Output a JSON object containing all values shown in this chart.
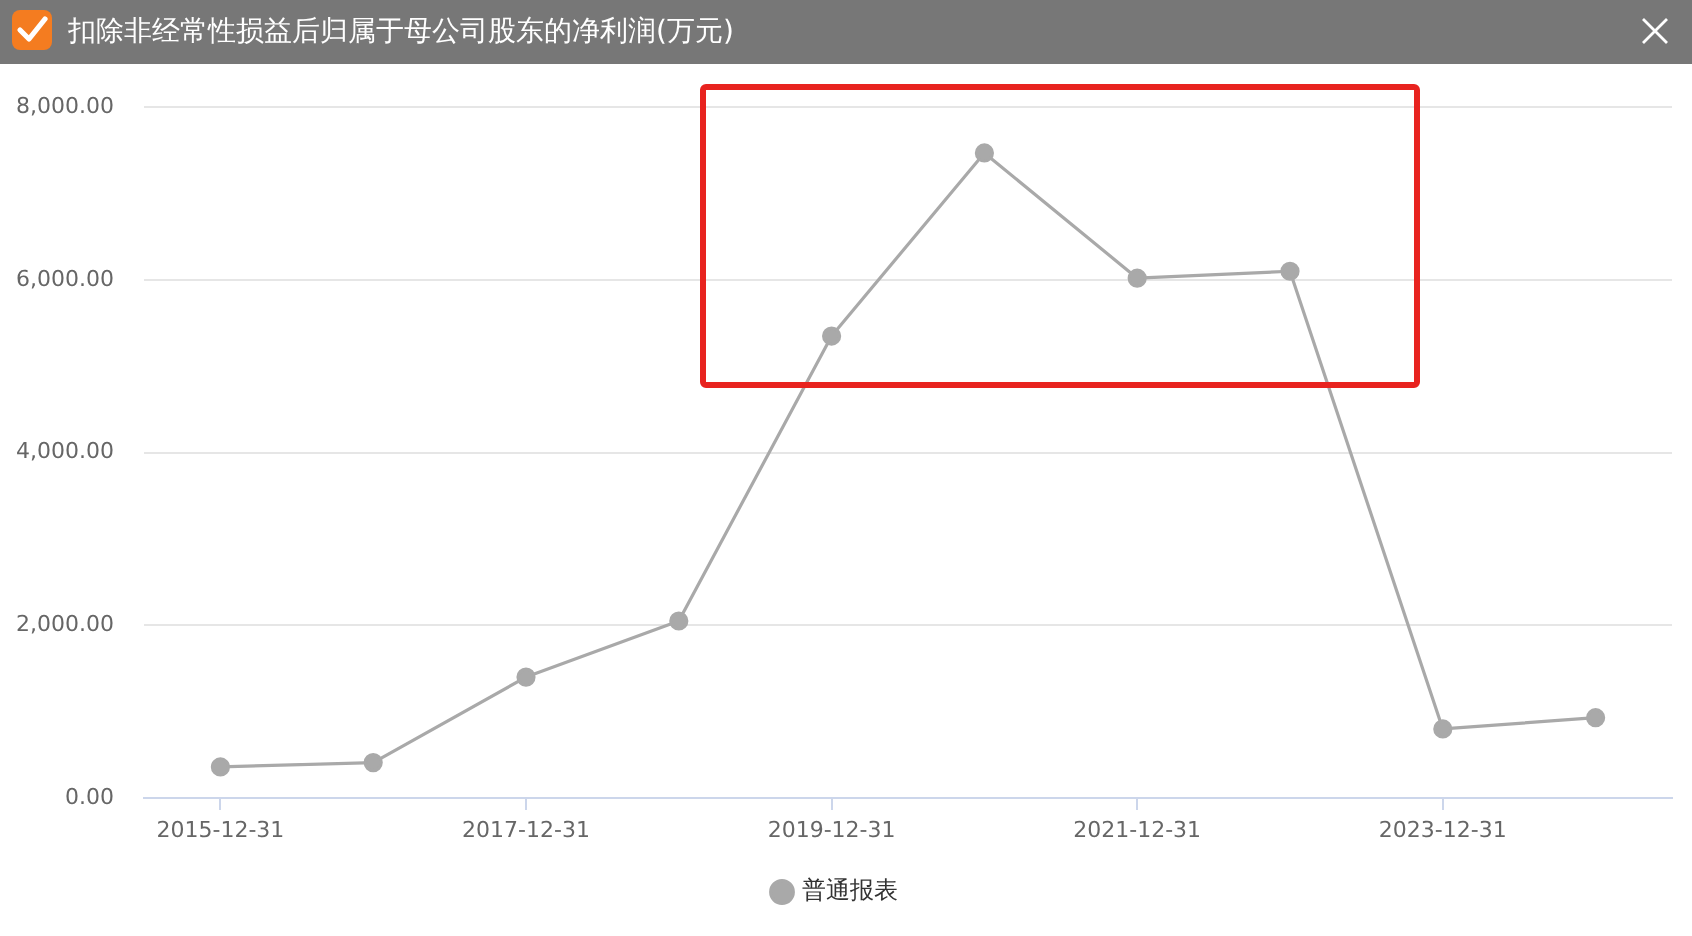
{
  "chart_data": {
    "type": "line",
    "title": "扣除非经常性损益后归属于母公司股东的净利润(万元)",
    "categories": [
      "2015-12-31",
      null,
      "2017-12-31",
      null,
      "2019-12-31",
      null,
      "2021-12-31",
      null,
      "2023-12-31",
      null
    ],
    "series": [
      {
        "name": "普通报表",
        "color": "#a9a9a9",
        "values": [
          360,
          410,
          1400,
          2050,
          5350,
          7470,
          6020,
          6100,
          800,
          930
        ]
      }
    ],
    "ylim": [
      0,
      8000
    ],
    "yticks": [
      {
        "value": 0,
        "label": "0.00"
      },
      {
        "value": 2000,
        "label": "2,000.00"
      },
      {
        "value": 4000,
        "label": "4,000.00"
      },
      {
        "value": 6000,
        "label": "6,000.00"
      },
      {
        "value": 8000,
        "label": "8,000.00"
      }
    ],
    "grid": "y",
    "legend": "bottom",
    "marker": "circle"
  }
}
